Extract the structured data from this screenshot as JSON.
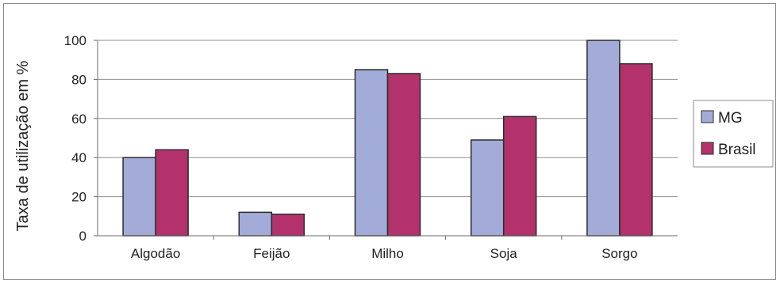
{
  "chart_data": {
    "type": "bar",
    "title": "",
    "xlabel": "",
    "ylabel": "Taxa de utilização em %",
    "ylim": [
      0,
      100
    ],
    "yticks": [
      "0",
      "20",
      "40",
      "60",
      "80",
      "100"
    ],
    "grid": true,
    "legend_position": "right",
    "categories": [
      "Algodão",
      "Feijão",
      "Milho",
      "Soja",
      "Sorgo"
    ],
    "series": [
      {
        "name": "MG",
        "color": "#a3acd8",
        "values": [
          40,
          12,
          85,
          49,
          100
        ]
      },
      {
        "name": "Brasil",
        "color": "#b3326c",
        "values": [
          44,
          11,
          83,
          61,
          88
        ]
      }
    ]
  }
}
